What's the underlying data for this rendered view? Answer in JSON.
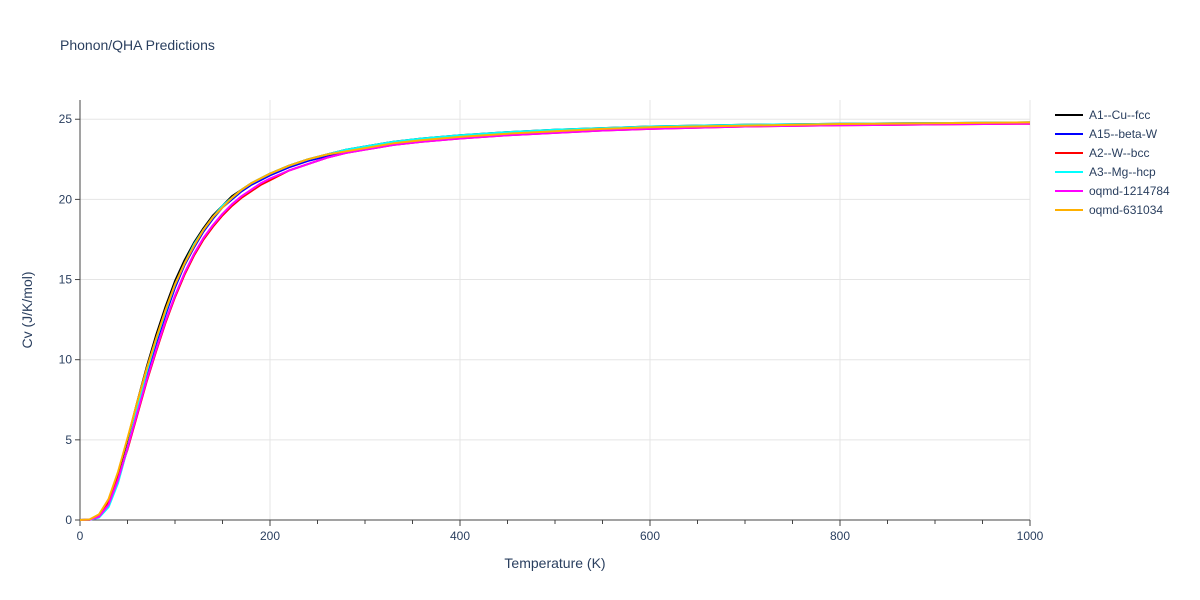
{
  "chart_data": {
    "type": "line",
    "title": "Phonon/QHA Predictions",
    "xlabel": "Temperature (K)",
    "ylabel": "Cv (J/K/mol)",
    "xlim": [
      0,
      1000
    ],
    "ylim": [
      0,
      26.2
    ],
    "xticks": [
      "0",
      "200",
      "400",
      "600",
      "800",
      "1000"
    ],
    "yticks": [
      "0",
      "5",
      "10",
      "15",
      "20",
      "25"
    ],
    "xtick_values": [
      0,
      200,
      400,
      600,
      800,
      1000
    ],
    "ytick_values": [
      0,
      5,
      10,
      15,
      20,
      25
    ],
    "grid": true,
    "legend_position": "right",
    "series": [
      {
        "name": "A1--Cu--fcc",
        "color": "#000000",
        "x": [
          0,
          10,
          20,
          30,
          40,
          50,
          60,
          70,
          80,
          90,
          100,
          110,
          120,
          130,
          140,
          150,
          160,
          170,
          180,
          190,
          200,
          220,
          240,
          260,
          280,
          300,
          330,
          360,
          400,
          450,
          500,
          550,
          600,
          700,
          800,
          900,
          1000
        ],
        "y": [
          0,
          0.02,
          0.3,
          1.2,
          2.9,
          5.0,
          7.3,
          9.5,
          11.5,
          13.3,
          14.9,
          16.2,
          17.3,
          18.2,
          19.0,
          19.6,
          20.2,
          20.6,
          21.0,
          21.3,
          21.6,
          22.1,
          22.5,
          22.8,
          23.1,
          23.3,
          23.6,
          23.8,
          24.0,
          24.2,
          24.35,
          24.45,
          24.55,
          24.65,
          24.72,
          24.76,
          24.8
        ]
      },
      {
        "name": "A15--beta-W",
        "color": "#0000ff",
        "x": [
          0,
          10,
          20,
          30,
          40,
          50,
          60,
          70,
          80,
          90,
          100,
          110,
          120,
          130,
          140,
          150,
          160,
          170,
          180,
          190,
          200,
          220,
          240,
          260,
          280,
          300,
          330,
          360,
          400,
          450,
          500,
          550,
          600,
          700,
          800,
          900,
          1000
        ],
        "y": [
          0,
          0.01,
          0.2,
          0.9,
          2.4,
          4.5,
          6.8,
          9.0,
          11.0,
          12.8,
          14.5,
          15.9,
          17.0,
          18.0,
          18.8,
          19.5,
          20.0,
          20.5,
          20.9,
          21.2,
          21.5,
          22.0,
          22.4,
          22.7,
          23.0,
          23.2,
          23.5,
          23.7,
          23.9,
          24.1,
          24.25,
          24.35,
          24.45,
          24.6,
          24.68,
          24.72,
          24.75
        ]
      },
      {
        "name": "A2--W--bcc",
        "color": "#ff0000",
        "x": [
          0,
          10,
          20,
          30,
          40,
          50,
          60,
          70,
          80,
          90,
          100,
          110,
          120,
          130,
          140,
          150,
          160,
          170,
          180,
          190,
          200,
          220,
          240,
          260,
          280,
          300,
          330,
          360,
          400,
          450,
          500,
          550,
          600,
          700,
          800,
          900,
          1000
        ],
        "y": [
          0,
          0.02,
          0.25,
          1.1,
          2.6,
          4.4,
          6.5,
          8.6,
          10.5,
          12.3,
          13.9,
          15.3,
          16.5,
          17.5,
          18.3,
          19.0,
          19.6,
          20.1,
          20.5,
          20.9,
          21.2,
          21.8,
          22.2,
          22.6,
          22.9,
          23.1,
          23.4,
          23.6,
          23.8,
          24.0,
          24.15,
          24.3,
          24.4,
          24.55,
          24.62,
          24.68,
          24.72
        ]
      },
      {
        "name": "A3--Mg--hcp",
        "color": "#00ffff",
        "x": [
          0,
          10,
          20,
          30,
          40,
          50,
          60,
          70,
          80,
          90,
          100,
          110,
          120,
          130,
          140,
          150,
          160,
          170,
          180,
          190,
          200,
          220,
          240,
          260,
          280,
          300,
          330,
          360,
          400,
          450,
          500,
          550,
          600,
          700,
          800,
          900,
          1000
        ],
        "y": [
          0,
          0.01,
          0.15,
          0.8,
          2.3,
          4.5,
          6.9,
          9.2,
          11.2,
          13.0,
          14.7,
          16.0,
          17.2,
          18.1,
          18.9,
          19.6,
          20.1,
          20.6,
          21.0,
          21.3,
          21.6,
          22.1,
          22.5,
          22.8,
          23.1,
          23.3,
          23.6,
          23.8,
          24.0,
          24.2,
          24.35,
          24.45,
          24.55,
          24.65,
          24.72,
          24.76,
          24.8
        ]
      },
      {
        "name": "oqmd-1214784",
        "color": "#ff00ff",
        "x": [
          0,
          10,
          20,
          30,
          40,
          50,
          60,
          70,
          80,
          90,
          100,
          110,
          120,
          130,
          140,
          150,
          160,
          170,
          180,
          190,
          200,
          220,
          240,
          260,
          280,
          300,
          330,
          360,
          400,
          450,
          500,
          550,
          600,
          700,
          800,
          900,
          1000
        ],
        "y": [
          0,
          0.01,
          0.2,
          0.95,
          2.5,
          4.5,
          6.6,
          8.7,
          10.6,
          12.4,
          14.0,
          15.4,
          16.6,
          17.6,
          18.4,
          19.1,
          19.7,
          20.2,
          20.6,
          21.0,
          21.3,
          21.8,
          22.2,
          22.6,
          22.9,
          23.1,
          23.4,
          23.6,
          23.8,
          24.0,
          24.15,
          24.3,
          24.4,
          24.55,
          24.62,
          24.68,
          24.72
        ]
      },
      {
        "name": "oqmd-631034",
        "color": "#ffb000",
        "x": [
          0,
          10,
          20,
          30,
          40,
          50,
          60,
          70,
          80,
          90,
          100,
          110,
          120,
          130,
          140,
          150,
          160,
          170,
          180,
          190,
          200,
          220,
          240,
          260,
          280,
          300,
          330,
          360,
          400,
          450,
          500,
          550,
          600,
          700,
          800,
          900,
          1000
        ],
        "y": [
          0,
          0.03,
          0.35,
          1.3,
          3.0,
          5.1,
          7.3,
          9.4,
          11.3,
          13.1,
          14.7,
          16.0,
          17.1,
          18.1,
          18.9,
          19.5,
          20.1,
          20.6,
          21.0,
          21.3,
          21.6,
          22.1,
          22.5,
          22.8,
          23.0,
          23.2,
          23.5,
          23.7,
          23.9,
          24.1,
          24.25,
          24.4,
          24.5,
          24.6,
          24.7,
          24.75,
          24.8
        ]
      }
    ]
  }
}
